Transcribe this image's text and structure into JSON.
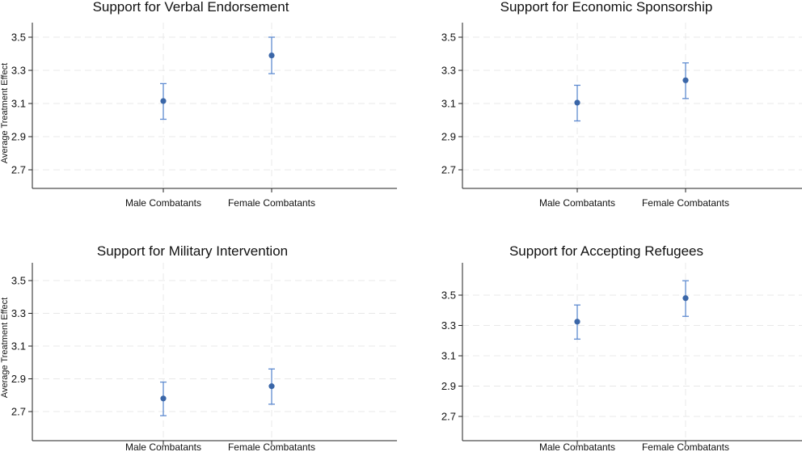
{
  "chart_data": [
    {
      "type": "scatter",
      "title": "Support for Verbal Endorsement",
      "ylabel": "Average Treatment Effect",
      "xlabel": "",
      "categories": [
        "Male Combatants",
        "Female Combatants"
      ],
      "values": [
        3.115,
        3.39
      ],
      "ci_low": [
        3.005,
        3.28
      ],
      "ci_high": [
        3.22,
        3.5
      ],
      "yticks": [
        "2.7",
        "2.9",
        "3.1",
        "3.3",
        "3.5"
      ],
      "ylim": [
        2.52,
        3.62
      ],
      "grid": true
    },
    {
      "type": "scatter",
      "title": "Support for Economic Sponsorship",
      "ylabel": "",
      "xlabel": "",
      "categories": [
        "Male Combatants",
        "Female Combatants"
      ],
      "values": [
        3.105,
        3.24
      ],
      "ci_low": [
        2.995,
        3.13
      ],
      "ci_high": [
        3.21,
        3.345
      ],
      "yticks": [
        "2.7",
        "2.9",
        "3.1",
        "3.3",
        "3.5"
      ],
      "ylim": [
        2.52,
        3.62
      ],
      "grid": true
    },
    {
      "type": "scatter",
      "title": "Support for Military Intervention",
      "ylabel": "Average Treatment Effect",
      "xlabel": "",
      "categories": [
        "Male Combatants",
        "Female Combatants"
      ],
      "values": [
        2.78,
        2.855
      ],
      "ci_low": [
        2.675,
        2.745
      ],
      "ci_high": [
        2.88,
        2.96
      ],
      "yticks": [
        "2.7",
        "2.9",
        "3.1",
        "3.3",
        "3.5"
      ],
      "ylim": [
        2.6,
        3.62
      ],
      "grid": true
    },
    {
      "type": "scatter",
      "title": "Support for Accepting Refugees",
      "ylabel": "",
      "xlabel": "",
      "categories": [
        "Male Combatants",
        "Female Combatants"
      ],
      "values": [
        3.325,
        3.48
      ],
      "ci_low": [
        3.21,
        3.36
      ],
      "ci_high": [
        3.435,
        3.595
      ],
      "yticks": [
        "2.7",
        "2.9",
        "3.1",
        "3.3",
        "3.5"
      ],
      "ylim": [
        2.58,
        3.72
      ],
      "grid": true
    }
  ],
  "colors": {
    "marker": "#3a66a8",
    "errorbar": "#5f8bd0",
    "grid": "#e8e8e8",
    "axis": "#222222"
  }
}
